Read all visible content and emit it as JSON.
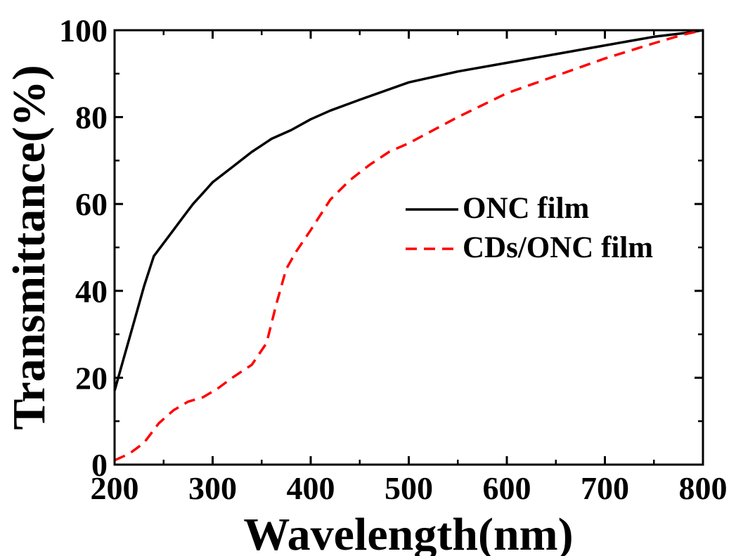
{
  "chart_data": {
    "type": "line",
    "title": "",
    "xlabel": "Wavelength(nm)",
    "ylabel": "Transmittance(%)",
    "xlim": [
      200,
      800
    ],
    "ylim": [
      0,
      100
    ],
    "xticks": [
      200,
      300,
      400,
      500,
      600,
      700,
      800
    ],
    "yticks": [
      0,
      20,
      40,
      60,
      80,
      100
    ],
    "grid": false,
    "legend_position": "right-middle",
    "series": [
      {
        "name": "ONC film",
        "color": "#000000",
        "style": "solid",
        "x": [
          200,
          210,
          220,
          230,
          240,
          250,
          260,
          270,
          280,
          290,
          300,
          320,
          340,
          350,
          360,
          380,
          400,
          420,
          450,
          500,
          550,
          600,
          650,
          700,
          750,
          780,
          800
        ],
        "y": [
          17,
          25,
          33,
          41,
          48,
          51,
          54,
          57,
          60,
          62.5,
          65,
          68.5,
          72,
          73.5,
          75,
          77,
          79.5,
          81.5,
          84,
          88,
          90.5,
          92.5,
          94.5,
          96.5,
          98.5,
          99.3,
          100
        ]
      },
      {
        "name": "CDs/ONC film",
        "color": "#ff0000",
        "style": "dashed",
        "x": [
          200,
          215,
          230,
          245,
          260,
          275,
          290,
          305,
          320,
          340,
          355,
          365,
          375,
          385,
          400,
          420,
          440,
          460,
          480,
          500,
          550,
          600,
          650,
          700,
          750,
          780,
          800
        ],
        "y": [
          1,
          2.5,
          5,
          9.5,
          12.5,
          14.5,
          15.5,
          17.5,
          20,
          23,
          28,
          37,
          45,
          49,
          54,
          61,
          65.5,
          69,
          72,
          74,
          80,
          85.5,
          89.5,
          93.5,
          97,
          99,
          100
        ]
      }
    ]
  }
}
